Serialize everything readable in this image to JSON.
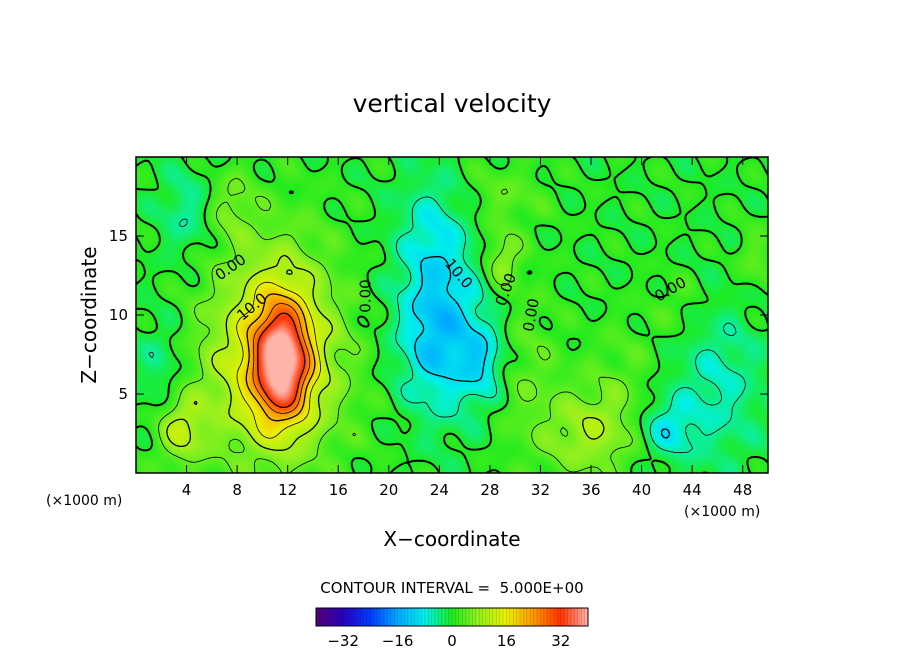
{
  "chart_data": {
    "type": "heatmap",
    "title": "vertical velocity",
    "xlabel": "X−coordinate",
    "ylabel": "Z−coordinate",
    "x_unit": "(×1000 m)",
    "y_unit": "(×1000 m)",
    "xlim": [
      0,
      50
    ],
    "ylim": [
      0,
      20
    ],
    "x_ticks": [
      4,
      8,
      12,
      16,
      20,
      24,
      28,
      32,
      36,
      40,
      44,
      48
    ],
    "y_ticks": [
      5,
      10,
      15
    ],
    "contour_interval_text": "CONTOUR INTERVAL =  5.000E+00",
    "contour_interval": 5,
    "contour_labels": [
      {
        "text": "0.00",
        "x": 7.5,
        "y": 13.0,
        "angle": -35
      },
      {
        "text": "10.0",
        "x": 9.2,
        "y": 10.5,
        "angle": -40
      },
      {
        "text": "0.00",
        "x": 18.2,
        "y": 11.2,
        "angle": -90
      },
      {
        "text": "10.0",
        "x": 25.5,
        "y": 12.6,
        "angle": 50
      },
      {
        "text": "0.00",
        "x": 29.3,
        "y": 11.6,
        "angle": -70
      },
      {
        "text": "0.00",
        "x": 31.3,
        "y": 10.0,
        "angle": -80
      },
      {
        "text": "0.00",
        "x": 42.3,
        "y": 11.6,
        "angle": -30
      }
    ],
    "colorbar": {
      "range": [
        -40,
        40
      ],
      "ticks": [
        -32,
        -16,
        0,
        16,
        32
      ],
      "tick_labels": [
        "−32",
        "−16",
        "0",
        "16",
        "32"
      ]
    },
    "field_features": [
      {
        "x": 11.5,
        "y": 7.0,
        "sx": 1.5,
        "sy": 2.5,
        "amp": 32
      },
      {
        "x": 11.0,
        "y": 9.0,
        "sx": 3.5,
        "sy": 4.5,
        "amp": 12
      },
      {
        "x": 10.0,
        "y": 5.0,
        "sx": 5.0,
        "sy": 4.0,
        "amp": 6
      },
      {
        "x": 3.5,
        "y": 2.8,
        "sx": 1.3,
        "sy": 1.5,
        "amp": 10
      },
      {
        "x": 7.5,
        "y": 17.0,
        "sx": 1.3,
        "sy": 1.5,
        "amp": 5
      },
      {
        "x": 24.0,
        "y": 9.0,
        "sx": 2.3,
        "sy": 3.5,
        "amp": -14
      },
      {
        "x": 27.5,
        "y": 7.0,
        "sx": 1.2,
        "sy": 1.8,
        "amp": -8
      },
      {
        "x": 23.5,
        "y": 15.5,
        "sx": 2.0,
        "sy": 2.5,
        "amp": -6
      },
      {
        "x": 42.0,
        "y": 2.8,
        "sx": 1.5,
        "sy": 1.3,
        "amp": -8
      },
      {
        "x": 46.0,
        "y": 5.5,
        "sx": 2.5,
        "sy": 3.5,
        "amp": -6
      },
      {
        "x": 2.0,
        "y": 6.5,
        "sx": 1.5,
        "sy": 2.5,
        "amp": -5
      },
      {
        "x": 4.0,
        "y": 16.5,
        "sx": 1.5,
        "sy": 2.0,
        "amp": -5
      },
      {
        "x": 36.0,
        "y": 2.5,
        "sx": 2.5,
        "sy": 2.0,
        "amp": 9
      },
      {
        "x": 31.0,
        "y": 6.0,
        "sx": 2.0,
        "sy": 4.0,
        "amp": 4
      },
      {
        "x": 29.0,
        "y": 13.5,
        "sx": 1.0,
        "sy": 1.2,
        "amp": 8
      },
      {
        "x": 29.0,
        "y": 17.5,
        "sx": 2.5,
        "sy": 1.5,
        "amp": 4
      },
      {
        "x": 38.5,
        "y": 6.5,
        "sx": 2.0,
        "sy": 2.5,
        "amp": 3
      },
      {
        "x": 49.0,
        "y": 13.5,
        "sx": 1.0,
        "sy": 1.5,
        "amp": 4
      },
      {
        "x": 43.0,
        "y": 10.5,
        "sx": 1.5,
        "sy": 1.5,
        "amp": 3
      }
    ],
    "colors": {
      "background": "#ffffff",
      "frame": "#000000",
      "field_zero": "#22ee22"
    }
  }
}
